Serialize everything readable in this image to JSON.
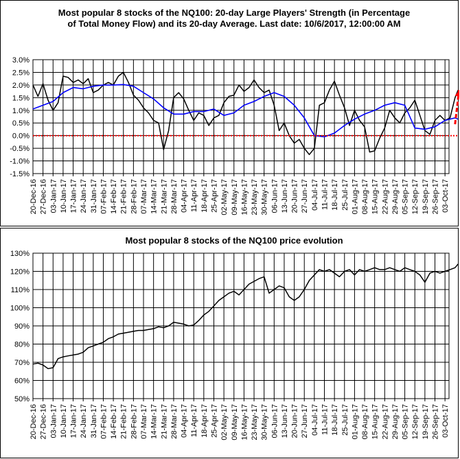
{
  "charts": [
    {
      "title_line1": "Most popular 8 stocks of the NQ100: 20-day Large Players' Strength (in Percentage",
      "title_line2": "of Total Money Flow) and its 20-day Average. Last date: 10/6/2017, 12:00:00 AM",
      "yticks": [
        "3.0%",
        "2.5%",
        "2.0%",
        "1.5%",
        "1.0%",
        "0.5%",
        "0.0%",
        "-0.5%",
        "-1.0%",
        "-1.5%"
      ]
    },
    {
      "title": "Most popular 8 stocks of the NQ100 price evolution",
      "yticks": [
        "130%",
        "120%",
        "110%",
        "100%",
        "90%",
        "80%",
        "70%",
        "60%",
        "50%"
      ]
    }
  ],
  "xticks": [
    "20-Dec-16",
    "27-Dec-16",
    "03-Jan-17",
    "10-Jan-17",
    "17-Jan-17",
    "24-Jan-17",
    "31-Jan-17",
    "07-Feb-17",
    "14-Feb-17",
    "21-Feb-17",
    "28-Feb-17",
    "07-Mar-17",
    "14-Mar-17",
    "21-Mar-17",
    "28-Mar-17",
    "04-Apr-17",
    "11-Apr-17",
    "18-Apr-17",
    "25-Apr-17",
    "02-May-17",
    "09-May-17",
    "16-May-17",
    "23-May-17",
    "30-May-17",
    "06-Jun-17",
    "13-Jun-17",
    "20-Jun-17",
    "27-Jun-17",
    "04-Jul-17",
    "11-Jul-17",
    "18-Jul-17",
    "25-Jul-17",
    "01-Aug-17",
    "08-Aug-17",
    "15-Aug-17",
    "22-Aug-17",
    "29-Aug-17",
    "05-Sep-17",
    "12-Sep-17",
    "19-Sep-17",
    "26-Sep-17",
    "03-Oct-17"
  ],
  "chart_data": [
    {
      "type": "line",
      "ylim": [
        -1.5,
        3.0
      ],
      "grid": true,
      "series": [
        {
          "color": "#000000",
          "x": [
            0,
            0.5,
            1,
            1.5,
            2,
            2.5,
            3,
            3.5,
            4,
            4.5,
            5,
            5.5,
            6,
            6.5,
            7,
            7.5,
            8,
            8.5,
            9,
            9.5,
            10,
            10.5,
            11,
            11.5,
            12,
            12.5,
            13,
            13.5,
            14,
            14.5,
            15,
            15.5,
            16,
            16.5,
            17,
            17.5,
            18,
            18.5,
            19,
            19.5,
            20,
            20.5,
            21,
            21.5,
            22,
            22.5,
            23,
            23.5,
            24,
            24.5,
            25,
            25.5,
            26,
            26.5,
            27,
            27.5,
            28,
            28.5,
            29,
            29.5,
            30,
            30.5,
            31,
            31.5,
            32,
            32.5,
            33,
            33.5,
            34,
            34.5,
            35,
            35.5,
            36,
            36.5,
            37,
            37.5,
            38,
            38.5,
            39,
            39.5,
            40,
            40.5,
            41,
            41.5,
            42,
            42.3
          ],
          "y": [
            2.0,
            1.55,
            2.05,
            1.4,
            1.0,
            1.3,
            2.35,
            2.3,
            2.1,
            2.2,
            2.05,
            2.25,
            1.7,
            1.8,
            2.0,
            2.1,
            2.0,
            2.35,
            2.5,
            2.1,
            1.6,
            1.4,
            1.1,
            0.9,
            0.6,
            0.5,
            -0.55,
            0.2,
            1.5,
            1.7,
            1.45,
            1.0,
            0.6,
            0.9,
            0.8,
            0.4,
            0.7,
            0.8,
            1.3,
            1.55,
            1.6,
            2.0,
            1.75,
            1.9,
            2.2,
            1.9,
            1.7,
            1.8,
            1.2,
            0.2,
            0.5,
            0.0,
            -0.3,
            -0.15,
            -0.5,
            -0.75,
            -0.5,
            1.2,
            1.3,
            1.8,
            2.15,
            1.6,
            1.1,
            0.4,
            1.0,
            0.6,
            0.35,
            -0.65,
            -0.6,
            -0.1,
            0.3,
            1.0,
            0.7,
            0.5,
            0.9,
            1.1,
            1.4,
            0.8,
            0.2,
            0.05,
            0.6,
            0.8,
            0.6,
            0.7,
            1.5,
            1.8
          ]
        },
        {
          "color": "#0000ff",
          "x": [
            0,
            1,
            2,
            3,
            4,
            5,
            6,
            7,
            8,
            9,
            10,
            11,
            12,
            13,
            14,
            15,
            16,
            17,
            18,
            19,
            20,
            21,
            22,
            23,
            24,
            25,
            26,
            27,
            28,
            29,
            30,
            31,
            32,
            33,
            34,
            35,
            36,
            37,
            38,
            39,
            40,
            41,
            42,
            42.3
          ],
          "y": [
            1.05,
            1.2,
            1.35,
            1.7,
            1.9,
            1.85,
            1.95,
            2.0,
            2.0,
            2.02,
            1.95,
            1.7,
            1.45,
            1.1,
            0.85,
            0.85,
            0.95,
            0.95,
            1.05,
            0.8,
            0.9,
            1.2,
            1.35,
            1.55,
            1.7,
            1.55,
            1.2,
            0.7,
            0.0,
            -0.05,
            0.1,
            0.4,
            0.65,
            0.85,
            1.0,
            1.2,
            1.3,
            1.2,
            0.3,
            0.25,
            0.35,
            0.6,
            0.7,
            0.65
          ]
        },
        {
          "color": "#ff0000",
          "x": [
            0,
            42.3
          ],
          "y": [
            0,
            0
          ],
          "style": "dotted"
        },
        {
          "color": "#ff0000",
          "x": [
            42.0,
            42.4
          ],
          "y": [
            0.45,
            1.8
          ],
          "style": "dashed-arrow"
        }
      ]
    },
    {
      "type": "line",
      "ylim": [
        50,
        130
      ],
      "grid": true,
      "series": [
        {
          "color": "#000000",
          "x": [
            0,
            0.5,
            1,
            1.5,
            2,
            2.5,
            3,
            3.5,
            4,
            4.5,
            5,
            5.5,
            6,
            6.5,
            7,
            7.5,
            8,
            8.5,
            9,
            9.5,
            10,
            10.5,
            11,
            11.5,
            12,
            12.5,
            13,
            13.5,
            14,
            14.5,
            15,
            15.5,
            16,
            16.5,
            17,
            17.5,
            18,
            18.5,
            19,
            19.5,
            20,
            20.5,
            21,
            21.5,
            22,
            22.5,
            23,
            23.5,
            24,
            24.5,
            25,
            25.5,
            26,
            26.5,
            27,
            27.5,
            28,
            28.5,
            29,
            29.5,
            30,
            30.5,
            31,
            31.5,
            32,
            32.5,
            33,
            33.5,
            34,
            34.5,
            35,
            35.5,
            36,
            36.5,
            37,
            37.5,
            38,
            38.5,
            39,
            39.5,
            40,
            40.5,
            41,
            41.5,
            42,
            42.3
          ],
          "y": [
            69,
            69.5,
            68.5,
            66.5,
            67,
            72,
            73,
            73.5,
            74,
            74.5,
            75.5,
            78,
            79,
            80,
            81,
            83,
            84,
            85.5,
            86,
            86.5,
            87,
            87.5,
            87.5,
            88,
            88.5,
            89.5,
            89,
            90,
            92,
            91.5,
            91,
            90,
            90.5,
            93,
            96,
            98,
            101,
            104,
            106,
            108,
            109,
            107,
            110,
            113,
            114.5,
            116,
            117,
            108,
            110,
            112,
            111,
            106,
            104,
            106,
            110,
            115,
            118,
            121,
            120,
            121,
            119,
            117,
            120,
            121,
            118,
            121,
            120,
            121,
            122,
            121,
            121,
            122,
            121,
            120,
            122,
            121,
            120,
            118,
            114,
            119,
            120,
            119,
            120,
            121,
            122,
            124
          ]
        }
      ]
    }
  ]
}
